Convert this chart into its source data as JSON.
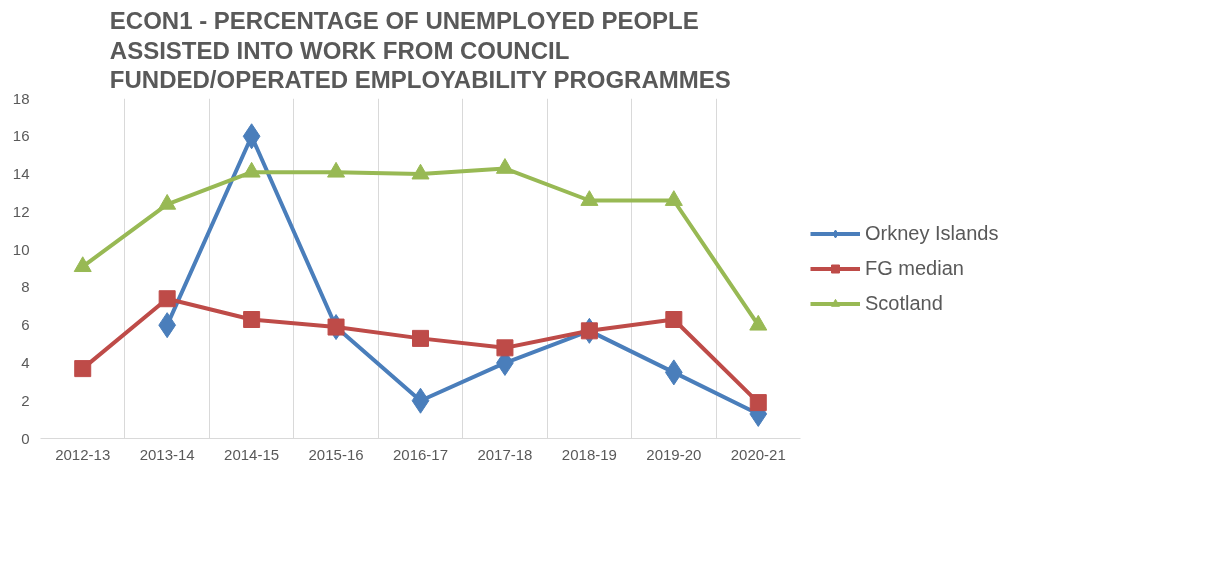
{
  "chart_data": {
    "type": "line",
    "title": "ECON1 - PERCENTAGE OF  UNEMPLOYED PEOPLE ASSISTED INTO WORK FROM COUNCIL FUNDED/OPERATED EMPLOYABILITY PROGRAMMES",
    "categories": [
      "2012-13",
      "2013-14",
      "2014-15",
      "2015-16",
      "2016-17",
      "2017-18",
      "2018-19",
      "2019-20",
      "2020-21"
    ],
    "series": [
      {
        "name": "Orkney Islands",
        "color": "#4a7ebb",
        "marker": "diamond",
        "values": [
          null,
          6.0,
          16.0,
          5.9,
          2.0,
          4.0,
          5.7,
          3.5,
          1.3
        ]
      },
      {
        "name": "FG median",
        "color": "#be4b48",
        "marker": "square",
        "values": [
          3.7,
          7.4,
          6.3,
          5.9,
          5.3,
          4.8,
          5.7,
          6.3,
          1.9
        ]
      },
      {
        "name": "Scotland",
        "color": "#98b954",
        "marker": "triangle",
        "values": [
          9.1,
          12.4,
          14.1,
          14.1,
          14.0,
          14.3,
          12.6,
          12.6,
          6.0
        ]
      }
    ],
    "ylim": [
      0,
      18
    ],
    "yticks": [
      0,
      2,
      4,
      6,
      8,
      10,
      12,
      14,
      16,
      18
    ],
    "grid": "x",
    "legend": "right",
    "line_style": "solid"
  }
}
